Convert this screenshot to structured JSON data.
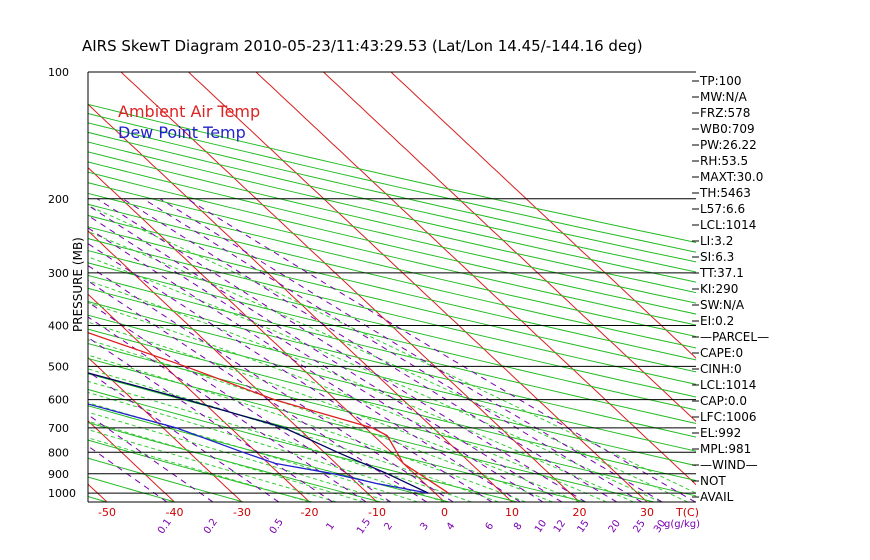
{
  "chart_data": {
    "type": "line",
    "title": "AIRS SkewT Diagram 2010-05-23/11:43:29.53 (Lat/Lon 14.45/-144.16 deg)",
    "ylabel": "PRESSURE (MB)",
    "pressure_ticks": [
      100,
      200,
      300,
      400,
      500,
      600,
      700,
      800,
      900,
      1000
    ],
    "pressure_range": [
      100,
      1050
    ],
    "top_temp_ticks": [
      -120,
      -110,
      -100,
      -90,
      -80,
      -70,
      -60,
      -50,
      -40
    ],
    "bottom_temp_ticks": [
      -50,
      -40,
      -30,
      -20,
      -10,
      0,
      10,
      20,
      30
    ],
    "bottom_temp_unit": "T(C)",
    "mixing_ratio_labels": [
      "0.1",
      "0.2",
      "0.5",
      "1",
      "1.5",
      "2",
      "3",
      "4",
      "6",
      "8",
      "10",
      "12",
      "15",
      "20",
      "25",
      "30",
      "40"
    ],
    "mixing_ratio_unit": "g(g/kg)",
    "legend": [
      {
        "label": "Ambient Air Temp",
        "color": "#dd2222"
      },
      {
        "label": "Dew Point Temp",
        "color": "#2222cc"
      }
    ],
    "series": [
      {
        "name": "Ambient Air Temp",
        "color": "#dd2222",
        "points": [
          [
            100,
            -80
          ],
          [
            130,
            -80
          ],
          [
            150,
            -78
          ],
          [
            200,
            -71
          ],
          [
            250,
            -60
          ],
          [
            300,
            -48
          ],
          [
            350,
            -37
          ],
          [
            400,
            -28
          ],
          [
            500,
            -17
          ],
          [
            600,
            -9
          ],
          [
            700,
            1
          ],
          [
            730,
            2
          ],
          [
            850,
            0
          ],
          [
            1000,
            2
          ]
        ]
      },
      {
        "name": "Dew Point Temp",
        "color": "#2222cc",
        "points": [
          [
            100,
            -85
          ],
          [
            150,
            -85
          ],
          [
            200,
            -84
          ],
          [
            250,
            -83
          ],
          [
            300,
            -78
          ],
          [
            400,
            -68
          ],
          [
            500,
            -52
          ],
          [
            600,
            -39
          ],
          [
            700,
            -28
          ],
          [
            800,
            -22
          ],
          [
            850,
            -19
          ],
          [
            900,
            -12
          ],
          [
            950,
            -7
          ],
          [
            1000,
            -1
          ]
        ]
      },
      {
        "name": "",
        "color": "#000060",
        "points": [
          [
            100,
            -101
          ],
          [
            200,
            -85
          ],
          [
            300,
            -64
          ],
          [
            400,
            -45
          ],
          [
            500,
            -35
          ],
          [
            600,
            -22
          ],
          [
            700,
            -12
          ],
          [
            800,
            -8
          ],
          [
            900,
            -4
          ],
          [
            1000,
            -1
          ]
        ]
      }
    ]
  },
  "indices": [
    "TP:100",
    "MW:N/A",
    "FRZ:578",
    "WB0:709",
    "PW:26.22",
    "RH:53.5",
    "MAXT:30.0",
    "TH:5463",
    "L57:6.6",
    "LCL:1014",
    "LI:3.2",
    "SI:6.3",
    "TT:37.1",
    "KI:290",
    "SW:N/A",
    "EI:0.2",
    "—PARCEL—",
    "CAPE:0",
    "CINH:0",
    "LCL:1014",
    "CAP:0.0",
    "LFC:1006",
    "EL:992",
    "MPL:981",
    "—WIND—",
    " NOT",
    "AVAIL"
  ]
}
